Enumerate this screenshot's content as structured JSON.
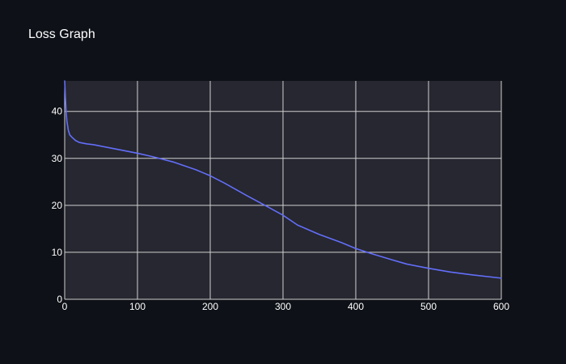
{
  "chart_data": {
    "type": "line",
    "title": "Loss Graph",
    "xlabel": "",
    "ylabel": "",
    "xlim": [
      0,
      600
    ],
    "ylim": [
      0,
      46.5
    ],
    "xticks": [
      0,
      100,
      200,
      300,
      400,
      500,
      600
    ],
    "yticks": [
      0,
      10,
      20,
      30,
      40
    ],
    "grid": true,
    "series": [
      {
        "color": "#636efa",
        "x": [
          0,
          1,
          2,
          3,
          5,
          7,
          10,
          15,
          20,
          30,
          40,
          50,
          60,
          80,
          100,
          120,
          150,
          180,
          200,
          220,
          250,
          280,
          300,
          320,
          350,
          380,
          400,
          420,
          450,
          470,
          500,
          530,
          560,
          600
        ],
        "y": [
          46.5,
          43,
          40,
          38,
          36,
          35,
          34.5,
          33.8,
          33.4,
          33.1,
          32.9,
          32.6,
          32.3,
          31.7,
          31.1,
          30.4,
          29.2,
          27.6,
          26.3,
          24.7,
          22.1,
          19.6,
          17.9,
          15.8,
          13.8,
          12.1,
          10.8,
          9.8,
          8.4,
          7.5,
          6.6,
          5.8,
          5.2,
          4.5
        ]
      }
    ]
  },
  "colors": {
    "page_bg": "#0e1117",
    "plot_bg": "#262730",
    "grid": "#d0d0d0",
    "line": "#636efa",
    "text": "#ffffff"
  }
}
